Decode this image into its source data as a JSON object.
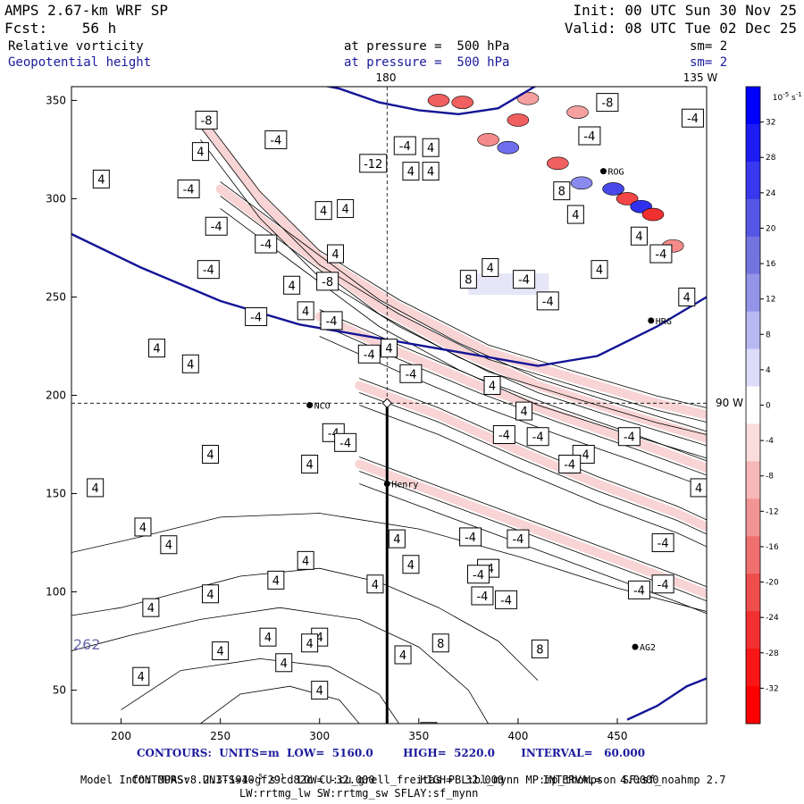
{
  "header": {
    "model_title": "AMPS 2.67-km WRF SP",
    "init": "Init: 00 UTC Sun 30 Nov 25",
    "fcst": "Fcst:    56 h",
    "valid": "Valid: 08 UTC Tue 02 Dec 25",
    "field1": "Relative vorticity",
    "field1_level": "at pressure =  500 hPa",
    "field1_sm": "sm= 2",
    "field2": "Geopotential height",
    "field2_level": "at pressure =  500 hPa",
    "field2_sm": "sm= 2"
  },
  "footer": {
    "contours_height": "CONTOURS:  UNITS=m  LOW=  5160.0        HIGH=  5220.0       INTERVAL=   60.000",
    "contours_vort_a": "CONTOURS:  UNITS=10",
    "contours_vort_exp": "-5",
    "contours_vort_b": " s",
    "contours_vort_exp2": "-1",
    "contours_vort_c": "  LOW= -32.000       HIGH=  32.000      INTERVAL=   4.0000",
    "model_info": "Model Info: MPASv8.2.3-194-gf29cd82c CU:cu_grell_freitas PBL:bl_mynn MP:mp_thompson SF:sf_noahmp 2.7",
    "model_info2": "LW:rrtmg_lw SW:rrtmg_sw SFLAY:sf_mynn"
  },
  "map_labels": {
    "lon_180": "180",
    "lon_135w": "135 W",
    "lat_90w": "90 W",
    "partial_value": "262"
  },
  "chart_data": {
    "type": "heatmap",
    "title": "Relative vorticity and Geopotential height at 500 hPa",
    "xlabel": "",
    "ylabel": "",
    "xlim": [
      175,
      495
    ],
    "ylim": [
      33,
      357
    ],
    "x_ticks": [
      200,
      250,
      300,
      350,
      400,
      450
    ],
    "y_ticks": [
      50,
      100,
      150,
      200,
      250,
      300,
      350
    ],
    "colorbar": {
      "unit_base": "10",
      "unit_exp": "-5",
      "unit_s": "s",
      "unit_exp2": "-1",
      "ticks": [
        32,
        28,
        24,
        20,
        16,
        12,
        8,
        4,
        0,
        -4,
        -8,
        -12,
        -16,
        -20,
        -24,
        -28,
        -32
      ],
      "colors": [
        "#0000ff",
        "#1c1cf5",
        "#3838ee",
        "#5656e6",
        "#7474e0",
        "#9494e8",
        "#b8b8f2",
        "#dcdcfa",
        "#ffffff",
        "#fbdcdc",
        "#f6b8b8",
        "#f29494",
        "#f07070",
        "#f04d4d",
        "#f33030",
        "#f81616",
        "#ff0000"
      ]
    },
    "height_contours": [
      {
        "name": "5160 m",
        "points": [
          [
            175,
            282
          ],
          [
            210,
            265
          ],
          [
            250,
            248
          ],
          [
            290,
            236
          ],
          [
            330,
            229
          ],
          [
            370,
            222
          ],
          [
            410,
            215
          ],
          [
            440,
            220
          ],
          [
            470,
            235
          ],
          [
            495,
            250
          ]
        ]
      },
      {
        "name": "5220 m",
        "points": [
          [
            290,
            360
          ],
          [
            310,
            356
          ],
          [
            330,
            349
          ],
          [
            350,
            345
          ],
          [
            370,
            343
          ],
          [
            390,
            346
          ],
          [
            410,
            358
          ]
        ]
      },
      {
        "name": "5220 m south",
        "points": [
          [
            455,
            35
          ],
          [
            470,
            42
          ],
          [
            485,
            52
          ],
          [
            495,
            56
          ]
        ]
      }
    ],
    "vort_bands": [
      {
        "points": [
          [
            240,
            340
          ],
          [
            270,
            300
          ],
          [
            300,
            270
          ],
          [
            340,
            245
          ],
          [
            385,
            222
          ],
          [
            430,
            208
          ],
          [
            470,
            196
          ],
          [
            495,
            190
          ]
        ]
      },
      {
        "points": [
          [
            250,
            305
          ],
          [
            290,
            275
          ],
          [
            330,
            245
          ],
          [
            370,
            223
          ],
          [
            410,
            205
          ],
          [
            450,
            192
          ],
          [
            495,
            178
          ]
        ]
      },
      {
        "points": [
          [
            300,
            240
          ],
          [
            340,
            222
          ],
          [
            380,
            205
          ],
          [
            420,
            190
          ],
          [
            460,
            176
          ],
          [
            495,
            163
          ]
        ]
      },
      {
        "points": [
          [
            320,
            205
          ],
          [
            360,
            190
          ],
          [
            400,
            172
          ],
          [
            440,
            155
          ],
          [
            480,
            140
          ],
          [
            495,
            133
          ]
        ]
      },
      {
        "points": [
          [
            320,
            165
          ],
          [
            360,
            150
          ],
          [
            400,
            135
          ],
          [
            440,
            120
          ],
          [
            480,
            105
          ],
          [
            495,
            99
          ]
        ]
      }
    ],
    "contour_labels": [
      {
        "x": 243,
        "y": 340,
        "v": "-8"
      },
      {
        "x": 240,
        "y": 324,
        "v": "4"
      },
      {
        "x": 278,
        "y": 330,
        "v": "-4"
      },
      {
        "x": 343,
        "y": 327,
        "v": "-4"
      },
      {
        "x": 356,
        "y": 326,
        "v": "4"
      },
      {
        "x": 327,
        "y": 318,
        "v": "-12"
      },
      {
        "x": 346,
        "y": 314,
        "v": "4"
      },
      {
        "x": 356,
        "y": 314,
        "v": "4"
      },
      {
        "x": 190,
        "y": 310,
        "v": "4"
      },
      {
        "x": 234,
        "y": 305,
        "v": "-4"
      },
      {
        "x": 302,
        "y": 294,
        "v": "4"
      },
      {
        "x": 313,
        "y": 295,
        "v": "4"
      },
      {
        "x": 248,
        "y": 286,
        "v": "-4"
      },
      {
        "x": 273,
        "y": 277,
        "v": "-4"
      },
      {
        "x": 308,
        "y": 272,
        "v": "4"
      },
      {
        "x": 244,
        "y": 264,
        "v": "-4"
      },
      {
        "x": 286,
        "y": 256,
        "v": "4"
      },
      {
        "x": 304,
        "y": 258,
        "v": "-8"
      },
      {
        "x": 293,
        "y": 243,
        "v": "4"
      },
      {
        "x": 268,
        "y": 240,
        "v": "-4"
      },
      {
        "x": 306,
        "y": 238,
        "v": "-4"
      },
      {
        "x": 218,
        "y": 224,
        "v": "4"
      },
      {
        "x": 335,
        "y": 224,
        "v": "4"
      },
      {
        "x": 325,
        "y": 221,
        "v": "-4"
      },
      {
        "x": 235,
        "y": 216,
        "v": "4"
      },
      {
        "x": 346,
        "y": 211,
        "v": "-4"
      },
      {
        "x": 387,
        "y": 205,
        "v": "4"
      },
      {
        "x": 403,
        "y": 192,
        "v": "4"
      },
      {
        "x": 307,
        "y": 181,
        "v": "-4"
      },
      {
        "x": 313,
        "y": 176,
        "v": "-4"
      },
      {
        "x": 393,
        "y": 180,
        "v": "-4"
      },
      {
        "x": 410,
        "y": 179,
        "v": "-4"
      },
      {
        "x": 456,
        "y": 179,
        "v": "-4"
      },
      {
        "x": 245,
        "y": 170,
        "v": "4"
      },
      {
        "x": 295,
        "y": 165,
        "v": "4"
      },
      {
        "x": 433,
        "y": 170,
        "v": "-4"
      },
      {
        "x": 426,
        "y": 165,
        "v": "-4"
      },
      {
        "x": 187,
        "y": 153,
        "v": "4"
      },
      {
        "x": 211,
        "y": 133,
        "v": "4"
      },
      {
        "x": 224,
        "y": 124,
        "v": "4"
      },
      {
        "x": 339,
        "y": 127,
        "v": "4"
      },
      {
        "x": 400,
        "y": 127,
        "v": "-4"
      },
      {
        "x": 376,
        "y": 128,
        "v": "-4"
      },
      {
        "x": 473,
        "y": 125,
        "v": "-4"
      },
      {
        "x": 293,
        "y": 116,
        "v": "4"
      },
      {
        "x": 346,
        "y": 114,
        "v": "4"
      },
      {
        "x": 385,
        "y": 112,
        "v": "-4"
      },
      {
        "x": 380,
        "y": 109,
        "v": "-4"
      },
      {
        "x": 278,
        "y": 106,
        "v": "4"
      },
      {
        "x": 328,
        "y": 104,
        "v": "4"
      },
      {
        "x": 473,
        "y": 104,
        "v": "-4"
      },
      {
        "x": 245,
        "y": 99,
        "v": "4"
      },
      {
        "x": 382,
        "y": 98,
        "v": "-4"
      },
      {
        "x": 394,
        "y": 96,
        "v": "-4"
      },
      {
        "x": 491,
        "y": 153,
        "v": "4"
      },
      {
        "x": 461,
        "y": 101,
        "v": "-4"
      },
      {
        "x": 342,
        "y": 68,
        "v": "4"
      },
      {
        "x": 215,
        "y": 92,
        "v": "4"
      },
      {
        "x": 274,
        "y": 77,
        "v": "4"
      },
      {
        "x": 300,
        "y": 77,
        "v": "4"
      },
      {
        "x": 361,
        "y": 74,
        "v": "8"
      },
      {
        "x": 210,
        "y": 57,
        "v": "4"
      },
      {
        "x": 250,
        "y": 70,
        "v": "4"
      },
      {
        "x": 282,
        "y": 64,
        "v": "4"
      },
      {
        "x": 295,
        "y": 74,
        "v": "4"
      },
      {
        "x": 300,
        "y": 50,
        "v": "4"
      },
      {
        "x": 411,
        "y": 71,
        "v": "8"
      },
      {
        "x": 355,
        "y": 29,
        "v": "4"
      },
      {
        "x": 445,
        "y": 349,
        "v": "-8"
      },
      {
        "x": 436,
        "y": 332,
        "v": "-4"
      },
      {
        "x": 488,
        "y": 341,
        "v": "-4"
      },
      {
        "x": 422,
        "y": 304,
        "v": "8"
      },
      {
        "x": 375,
        "y": 259,
        "v": "8"
      },
      {
        "x": 415,
        "y": 248,
        "v": "-4"
      },
      {
        "x": 441,
        "y": 264,
        "v": "4"
      },
      {
        "x": 472,
        "y": 272,
        "v": "-4"
      },
      {
        "x": 461,
        "y": 281,
        "v": "4"
      },
      {
        "x": 429,
        "y": 292,
        "v": "4"
      },
      {
        "x": 386,
        "y": 265,
        "v": "4"
      },
      {
        "x": 403,
        "y": 259,
        "v": "-4"
      },
      {
        "x": 485,
        "y": 250,
        "v": "4"
      }
    ],
    "stations": [
      {
        "name": "NCO",
        "x": 295,
        "y": 195
      },
      {
        "name": "Henry",
        "x": 334,
        "y": 155
      },
      {
        "name": "AG2",
        "x": 459,
        "y": 72
      },
      {
        "name": "HRG",
        "x": 467,
        "y": 238
      },
      {
        "name": "ROG",
        "x": 443,
        "y": 314
      }
    ],
    "cross_point": {
      "x": 334,
      "y": 196
    }
  }
}
